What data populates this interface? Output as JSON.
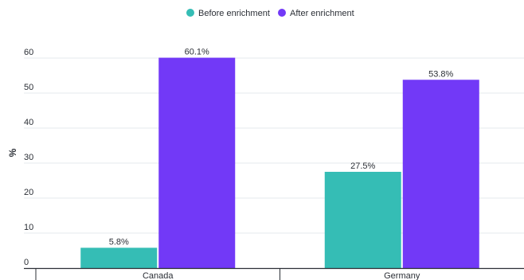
{
  "chart_data": {
    "type": "bar",
    "categories": [
      "Canada",
      "Germany"
    ],
    "series": [
      {
        "name": "Before enrichment",
        "values": [
          5.8,
          27.5
        ],
        "labels": [
          "5.8%",
          "27.5%"
        ],
        "color": "#35bdb5"
      },
      {
        "name": "After enrichment",
        "values": [
          60.1,
          53.8
        ],
        "labels": [
          "60.1%",
          "53.8%"
        ],
        "color": "#7239f7"
      }
    ],
    "title": "",
    "xlabel": "",
    "ylabel": "%",
    "ylim": [
      0,
      60
    ],
    "yticks": [
      "0",
      "10",
      "20",
      "30",
      "40",
      "50",
      "60"
    ],
    "grid": true,
    "legend": "top-center"
  }
}
